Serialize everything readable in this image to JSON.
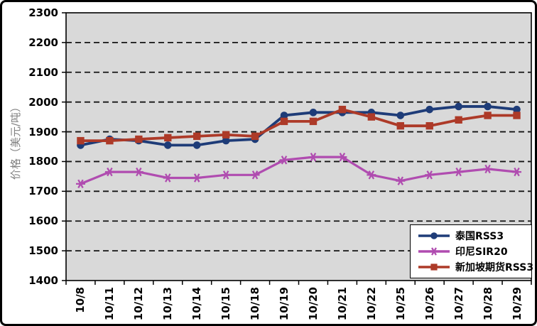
{
  "chart_data": {
    "type": "line",
    "title": "",
    "ylabel": "价格（美元/吨）",
    "xlabel": "",
    "ylim": [
      1400,
      2300
    ],
    "y_ticks": [
      2300,
      2200,
      2100,
      2000,
      1900,
      1800,
      1700,
      1600,
      1500,
      1400
    ],
    "grid": "horizontal-dashed",
    "legend_position": "bottom-right",
    "plot_bg": "#D9D9D9",
    "grid_color": "#141414",
    "axis_color": "#000000",
    "ylabel_color": "#808080",
    "categories": [
      "10/8",
      "10/11",
      "10/12",
      "10/13",
      "10/14",
      "10/15",
      "10/18",
      "10/19",
      "10/20",
      "10/21",
      "10/22",
      "10/25",
      "10/26",
      "10/27",
      "10/28",
      "10/29"
    ],
    "series": [
      {
        "name": "泰国RSS3",
        "marker": "circle",
        "color": "#1E3C78",
        "values": [
          1855,
          1875,
          1870,
          1855,
          1855,
          1870,
          1875,
          1955,
          1965,
          1965,
          1965,
          1955,
          1975,
          1985,
          1985,
          1975
        ]
      },
      {
        "name": "印尼SIR20",
        "marker": "star",
        "color": "#B04CB0",
        "values": [
          1725,
          1765,
          1765,
          1745,
          1745,
          1755,
          1755,
          1805,
          1815,
          1815,
          1755,
          1735,
          1755,
          1765,
          1775,
          1765
        ]
      },
      {
        "name": "新加坡期货RSS3",
        "marker": "square",
        "color": "#AD3A28",
        "values": [
          1870,
          1870,
          1875,
          1880,
          1885,
          1890,
          1885,
          1935,
          1935,
          1975,
          1950,
          1920,
          1920,
          1940,
          1955,
          1955
        ]
      }
    ]
  }
}
